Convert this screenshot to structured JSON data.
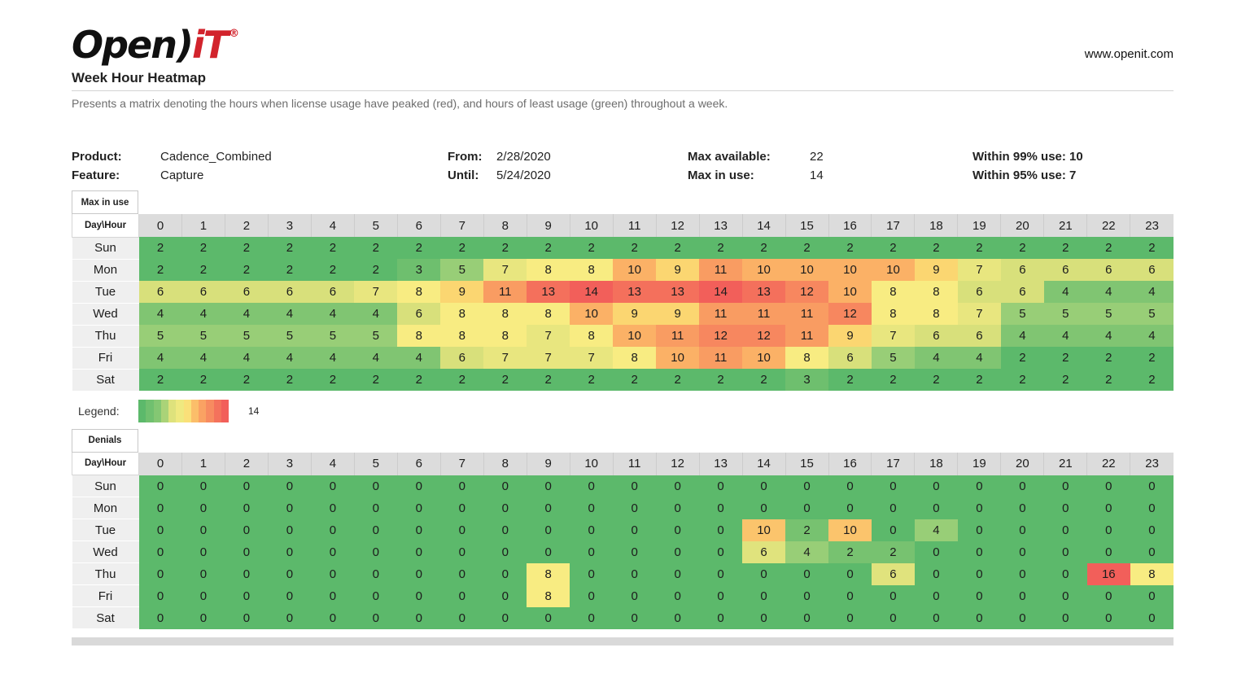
{
  "header": {
    "logo_open": "Open",
    "logo_paren": ")",
    "logo_it": "iT",
    "logo_reg": "®",
    "website": "www.openit.com",
    "title": "Week Hour Heatmap",
    "subtitle": "Presents a matrix denoting the hours when license usage have peaked (red), and hours of least usage (green) throughout a week."
  },
  "info": {
    "product_label": "Product:",
    "product_value": "Cadence_Combined",
    "feature_label": "Feature:",
    "feature_value": "Capture",
    "from_label": "From:",
    "from_value": "2/28/2020",
    "until_label": "Until:",
    "until_value": "5/24/2020",
    "max_available_label": "Max available:",
    "max_available_value": "22",
    "max_in_use_label": "Max in use:",
    "max_in_use_value": "14",
    "within_99": "Within 99% use: 10",
    "within_95": "Within 95% use: 7"
  },
  "legend": {
    "label": "Legend:",
    "max_value": "14",
    "steps": 12,
    "colors_hint": [
      "#5cb96b",
      "#f8ec82",
      "#f25f5a"
    ]
  },
  "chart_data": [
    {
      "type": "heatmap",
      "title": "Max in use",
      "corner_label": "Day\\Hour",
      "hours": [
        0,
        1,
        2,
        3,
        4,
        5,
        6,
        7,
        8,
        9,
        10,
        11,
        12,
        13,
        14,
        15,
        16,
        17,
        18,
        19,
        20,
        21,
        22,
        23
      ],
      "days": [
        "Sun",
        "Mon",
        "Tue",
        "Wed",
        "Thu",
        "Fri",
        "Sat"
      ],
      "values": [
        [
          2,
          2,
          2,
          2,
          2,
          2,
          2,
          2,
          2,
          2,
          2,
          2,
          2,
          2,
          2,
          2,
          2,
          2,
          2,
          2,
          2,
          2,
          2,
          2
        ],
        [
          2,
          2,
          2,
          2,
          2,
          2,
          3,
          5,
          7,
          8,
          8,
          10,
          9,
          11,
          10,
          10,
          10,
          10,
          9,
          7,
          6,
          6,
          6,
          6
        ],
        [
          6,
          6,
          6,
          6,
          6,
          7,
          8,
          9,
          11,
          13,
          14,
          13,
          13,
          14,
          13,
          12,
          10,
          8,
          8,
          6,
          6,
          4,
          4,
          4
        ],
        [
          4,
          4,
          4,
          4,
          4,
          4,
          6,
          8,
          8,
          8,
          10,
          9,
          9,
          11,
          11,
          11,
          12,
          8,
          8,
          7,
          5,
          5,
          5,
          5
        ],
        [
          5,
          5,
          5,
          5,
          5,
          5,
          8,
          8,
          8,
          7,
          8,
          10,
          11,
          12,
          12,
          11,
          9,
          7,
          6,
          6,
          4,
          4,
          4,
          4
        ],
        [
          4,
          4,
          4,
          4,
          4,
          4,
          4,
          6,
          7,
          7,
          7,
          8,
          10,
          11,
          10,
          8,
          6,
          5,
          4,
          4,
          2,
          2,
          2,
          2
        ],
        [
          2,
          2,
          2,
          2,
          2,
          2,
          2,
          2,
          2,
          2,
          2,
          2,
          2,
          2,
          2,
          3,
          2,
          2,
          2,
          2,
          2,
          2,
          2,
          2
        ]
      ],
      "scale": {
        "min": 2,
        "max": 14
      }
    },
    {
      "type": "heatmap",
      "title": "Denials",
      "corner_label": "Day\\Hour",
      "hours": [
        0,
        1,
        2,
        3,
        4,
        5,
        6,
        7,
        8,
        9,
        10,
        11,
        12,
        13,
        14,
        15,
        16,
        17,
        18,
        19,
        20,
        21,
        22,
        23
      ],
      "days": [
        "Sun",
        "Mon",
        "Tue",
        "Wed",
        "Thu",
        "Fri",
        "Sat"
      ],
      "values": [
        [
          0,
          0,
          0,
          0,
          0,
          0,
          0,
          0,
          0,
          0,
          0,
          0,
          0,
          0,
          0,
          0,
          0,
          0,
          0,
          0,
          0,
          0,
          0,
          0
        ],
        [
          0,
          0,
          0,
          0,
          0,
          0,
          0,
          0,
          0,
          0,
          0,
          0,
          0,
          0,
          0,
          0,
          0,
          0,
          0,
          0,
          0,
          0,
          0,
          0
        ],
        [
          0,
          0,
          0,
          0,
          0,
          0,
          0,
          0,
          0,
          0,
          0,
          0,
          0,
          0,
          10,
          2,
          10,
          0,
          4,
          0,
          0,
          0,
          0,
          0
        ],
        [
          0,
          0,
          0,
          0,
          0,
          0,
          0,
          0,
          0,
          0,
          0,
          0,
          0,
          0,
          6,
          4,
          2,
          2,
          0,
          0,
          0,
          0,
          0,
          0
        ],
        [
          0,
          0,
          0,
          0,
          0,
          0,
          0,
          0,
          0,
          8,
          0,
          0,
          0,
          0,
          0,
          0,
          0,
          6,
          0,
          0,
          0,
          0,
          16,
          8
        ],
        [
          0,
          0,
          0,
          0,
          0,
          0,
          0,
          0,
          0,
          8,
          0,
          0,
          0,
          0,
          0,
          0,
          0,
          0,
          0,
          0,
          0,
          0,
          0,
          0
        ],
        [
          0,
          0,
          0,
          0,
          0,
          0,
          0,
          0,
          0,
          0,
          0,
          0,
          0,
          0,
          0,
          0,
          0,
          0,
          0,
          0,
          0,
          0,
          0,
          0
        ]
      ],
      "scale": {
        "min": 0,
        "max": 16
      }
    }
  ]
}
